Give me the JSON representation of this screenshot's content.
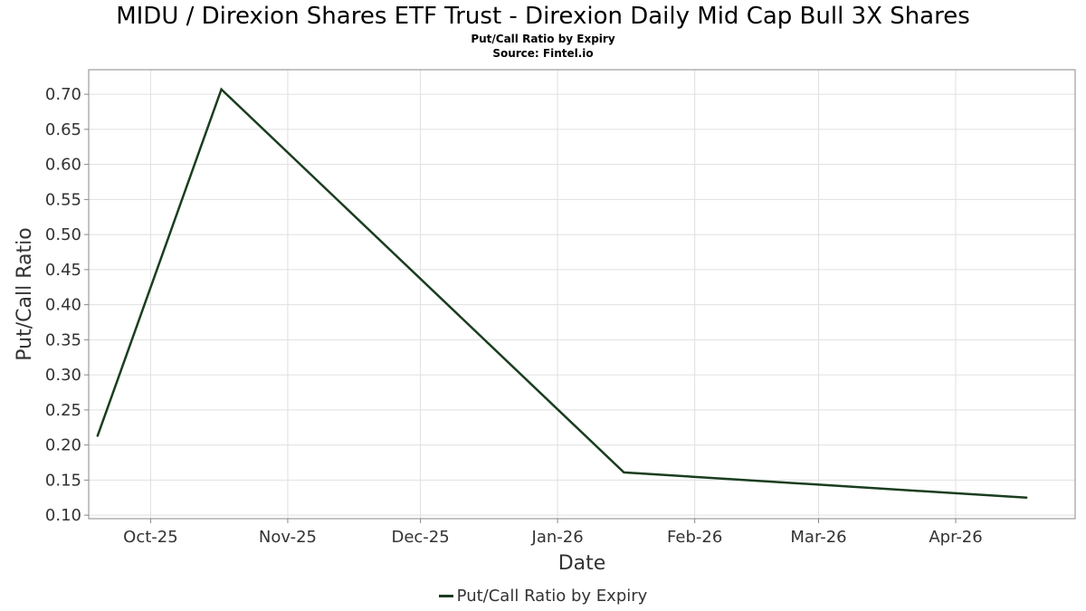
{
  "title": "MIDU / Direxion Shares ETF Trust - Direxion Daily Mid Cap Bull 3X Shares",
  "subtitle": "Put/Call Ratio by Expiry",
  "source": "Source: Fintel.io",
  "colors": {
    "line": "#1a3d1f",
    "grid": "#e0e0e0",
    "axis": "#888888",
    "text": "#333333"
  },
  "chart_data": {
    "type": "line",
    "title": "MIDU / Direxion Shares ETF Trust - Direxion Daily Mid Cap Bull 3X Shares",
    "subtitle": "Put/Call Ratio by Expiry",
    "xlabel": "Date",
    "ylabel": "Put/Call Ratio",
    "x_tick_labels": [
      "Oct-25",
      "Nov-25",
      "Dec-25",
      "Jan-26",
      "Feb-26",
      "Mar-26",
      "Apr-26"
    ],
    "x_ticks": [
      "2025-10-01",
      "2025-11-01",
      "2025-12-01",
      "2026-01-01",
      "2026-02-01",
      "2026-03-01",
      "2026-04-01"
    ],
    "xlim": [
      "2025-09-17",
      "2026-04-28"
    ],
    "y_ticks": [
      0.1,
      0.15,
      0.2,
      0.25,
      0.3,
      0.35,
      0.4,
      0.45,
      0.5,
      0.55,
      0.6,
      0.65,
      0.7
    ],
    "ylim": [
      0.095,
      0.735
    ],
    "grid": true,
    "legend_position": "bottom-center",
    "series": [
      {
        "name": "Put/Call Ratio by Expiry",
        "x": [
          "2025-09-19",
          "2025-10-17",
          "2026-01-16",
          "2026-04-17"
        ],
        "y": [
          0.213,
          0.707,
          0.161,
          0.125
        ]
      }
    ]
  }
}
